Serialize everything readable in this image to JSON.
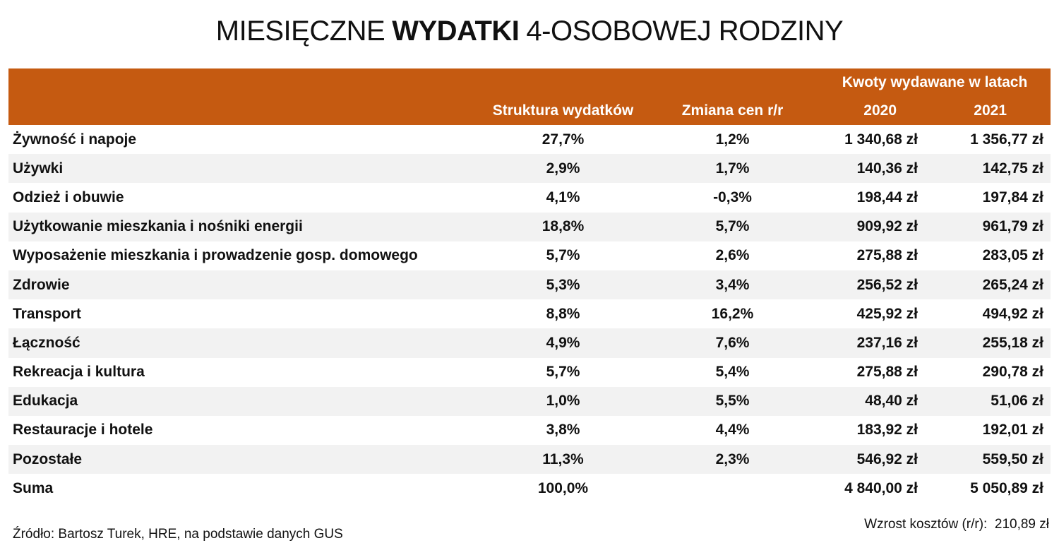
{
  "title": [
    "MIESIĘCZNE",
    "WYDATKI",
    "4-OSOBOWEJ RODZINY"
  ],
  "table": {
    "group_header": "Kwoty wydawane w latach",
    "columns": [
      "Struktura wydatków",
      "Zmiana cen r/r",
      "2020",
      "2021"
    ],
    "rows": [
      [
        "Żywność i napoje",
        "27,7%",
        "1,2%",
        "1 340,68 zł",
        "1 356,77 zł"
      ],
      [
        "Używki",
        "2,9%",
        "1,7%",
        "140,36 zł",
        "142,75 zł"
      ],
      [
        "Odzież i obuwie",
        "4,1%",
        "-0,3%",
        "198,44 zł",
        "197,84 zł"
      ],
      [
        "Użytkowanie mieszkania i nośniki energii",
        "18,8%",
        "5,7%",
        "909,92 zł",
        "961,79 zł"
      ],
      [
        "Wyposażenie mieszkania i prowadzenie gosp. domowego",
        "5,7%",
        "2,6%",
        "275,88 zł",
        "283,05 zł"
      ],
      [
        "Zdrowie",
        "5,3%",
        "3,4%",
        "256,52 zł",
        "265,24 zł"
      ],
      [
        "Transport",
        "8,8%",
        "16,2%",
        "425,92 zł",
        "494,92 zł"
      ],
      [
        "Łączność",
        "4,9%",
        "7,6%",
        "237,16 zł",
        "255,18 zł"
      ],
      [
        "Rekreacja i kultura",
        "5,7%",
        "5,4%",
        "275,88 zł",
        "290,78 zł"
      ],
      [
        "Edukacja",
        "1,0%",
        "5,5%",
        "48,40 zł",
        "51,06 zł"
      ],
      [
        "Restauracje i hotele",
        "3,8%",
        "4,4%",
        "183,92 zł",
        "192,01 zł"
      ],
      [
        "Pozostałe",
        "11,3%",
        "2,3%",
        "546,92 zł",
        "559,50 zł"
      ],
      [
        "Suma",
        "100,0%",
        null,
        "4 840,00 zł",
        "5 050,89 zł"
      ]
    ]
  },
  "footer": {
    "source": "Źródło: Bartosz Turek, HRE, na podstawie danych GUS",
    "growth_label": "Wzrost kosztów (r/r):",
    "growth_value": "210,89 zł"
  }
}
